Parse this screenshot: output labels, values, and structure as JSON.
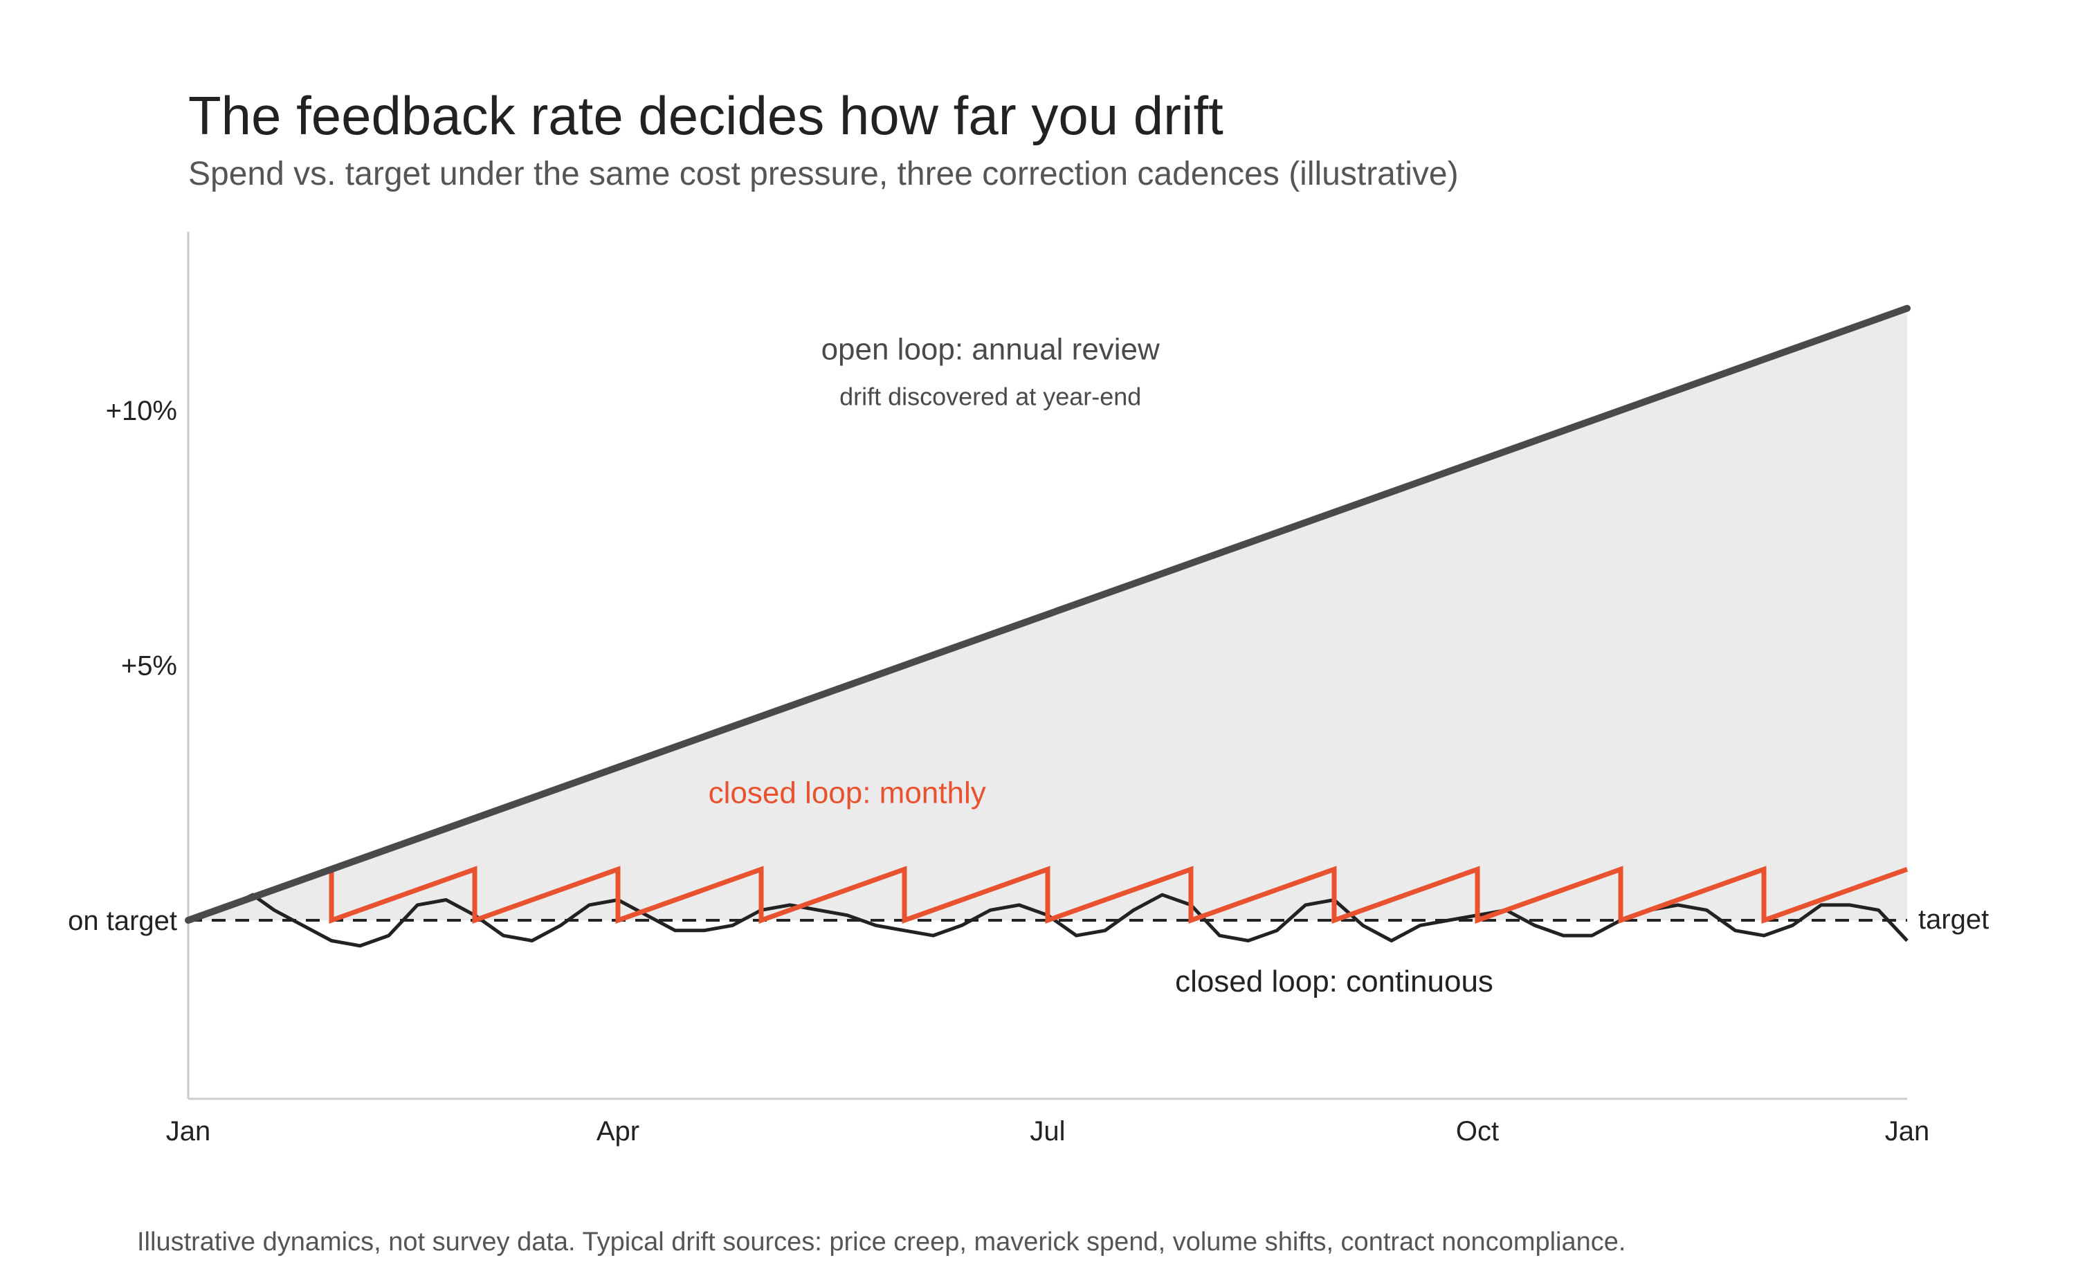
{
  "header": {
    "title": "The feedback rate decides how far you drift",
    "subtitle": "Spend vs. target under the same cost pressure, three correction cadences (illustrative)"
  },
  "footnote": "Illustrative dynamics, not survey data. Typical drift sources: price creep, maverick spend, volume shifts, contract noncompliance.",
  "colors": {
    "open_loop": "#4a4a4a",
    "monthly": "#e8522e",
    "continuous": "#222222",
    "band_fill": "#ebebeb",
    "axis": "#cccccc",
    "target_line": "#222222"
  },
  "chart_data": {
    "type": "line",
    "title": "The feedback rate decides how far you drift",
    "subtitle": "Spend vs. target under the same cost pressure, three correction cadences (illustrative)",
    "xlabel": "",
    "ylabel": "",
    "x_unit": "months since Jan",
    "xlim": [
      0,
      12
    ],
    "ylim": [
      -3.5,
      13.5
    ],
    "x_ticks": [
      {
        "value": 0,
        "label": "Jan"
      },
      {
        "value": 3,
        "label": "Apr"
      },
      {
        "value": 6,
        "label": "Jul"
      },
      {
        "value": 9,
        "label": "Oct"
      },
      {
        "value": 12,
        "label": "Jan"
      }
    ],
    "y_ticks": [
      {
        "value": 0,
        "label": "on target"
      },
      {
        "value": 5,
        "label": "+5%"
      },
      {
        "value": 10,
        "label": "+10%"
      }
    ],
    "target": {
      "value": 0,
      "label": "target",
      "style": "dashed"
    },
    "grid": false,
    "legend": "none (direct labels)",
    "series": [
      {
        "name": "open loop: annual review",
        "note": "drift discovered at year-end",
        "style": "thick dark line with shaded area to target",
        "points": [
          [
            0,
            0
          ],
          [
            12,
            12
          ]
        ]
      },
      {
        "name": "closed loop: monthly",
        "style": "sawtooth: climbs ~1% per month, reset to target at each month end",
        "points": [
          [
            0,
            0
          ],
          [
            1,
            1
          ],
          [
            1,
            0
          ],
          [
            2,
            1
          ],
          [
            2,
            0
          ],
          [
            3,
            1
          ],
          [
            3,
            0
          ],
          [
            4,
            1
          ],
          [
            4,
            0
          ],
          [
            5,
            1
          ],
          [
            5,
            0
          ],
          [
            6,
            1
          ],
          [
            6,
            0
          ],
          [
            7,
            1
          ],
          [
            7,
            0
          ],
          [
            8,
            1
          ],
          [
            8,
            0
          ],
          [
            9,
            1
          ],
          [
            9,
            0
          ],
          [
            10,
            1
          ],
          [
            10,
            0
          ],
          [
            11,
            1
          ],
          [
            11,
            0
          ],
          [
            12,
            1
          ]
        ]
      },
      {
        "name": "closed loop: continuous",
        "style": "noisy line around target",
        "points": [
          [
            0,
            0.0
          ],
          [
            0.3,
            0.3
          ],
          [
            0.45,
            0.5
          ],
          [
            0.6,
            0.2
          ],
          [
            0.8,
            -0.1
          ],
          [
            1.0,
            -0.4
          ],
          [
            1.2,
            -0.5
          ],
          [
            1.4,
            -0.3
          ],
          [
            1.6,
            0.3
          ],
          [
            1.8,
            0.4
          ],
          [
            2.0,
            0.1
          ],
          [
            2.2,
            -0.3
          ],
          [
            2.4,
            -0.4
          ],
          [
            2.6,
            -0.1
          ],
          [
            2.8,
            0.3
          ],
          [
            3.0,
            0.4
          ],
          [
            3.2,
            0.1
          ],
          [
            3.4,
            -0.2
          ],
          [
            3.6,
            -0.2
          ],
          [
            3.8,
            -0.1
          ],
          [
            4.0,
            0.2
          ],
          [
            4.2,
            0.3
          ],
          [
            4.4,
            0.2
          ],
          [
            4.6,
            0.1
          ],
          [
            4.8,
            -0.1
          ],
          [
            5.0,
            -0.2
          ],
          [
            5.2,
            -0.3
          ],
          [
            5.4,
            -0.1
          ],
          [
            5.6,
            0.2
          ],
          [
            5.8,
            0.3
          ],
          [
            6.0,
            0.1
          ],
          [
            6.2,
            -0.3
          ],
          [
            6.4,
            -0.2
          ],
          [
            6.6,
            0.2
          ],
          [
            6.8,
            0.5
          ],
          [
            7.0,
            0.3
          ],
          [
            7.2,
            -0.3
          ],
          [
            7.4,
            -0.4
          ],
          [
            7.6,
            -0.2
          ],
          [
            7.8,
            0.3
          ],
          [
            8.0,
            0.4
          ],
          [
            8.2,
            -0.1
          ],
          [
            8.4,
            -0.4
          ],
          [
            8.6,
            -0.1
          ],
          [
            8.8,
            0.0
          ],
          [
            9.0,
            0.1
          ],
          [
            9.2,
            0.2
          ],
          [
            9.4,
            -0.1
          ],
          [
            9.6,
            -0.3
          ],
          [
            9.8,
            -0.3
          ],
          [
            10.0,
            0.0
          ],
          [
            10.2,
            0.2
          ],
          [
            10.4,
            0.3
          ],
          [
            10.6,
            0.2
          ],
          [
            10.8,
            -0.2
          ],
          [
            11.0,
            -0.3
          ],
          [
            11.2,
            -0.1
          ],
          [
            11.4,
            0.3
          ],
          [
            11.6,
            0.3
          ],
          [
            11.8,
            0.2
          ],
          [
            12.0,
            -0.4
          ]
        ]
      }
    ],
    "annotations": [
      {
        "text": "open loop: annual review",
        "x": 5.6,
        "y": 11.0,
        "color": "#4a4a4a"
      },
      {
        "text": "drift discovered at year-end",
        "x": 5.6,
        "y": 10.1,
        "color": "#4a4a4a"
      },
      {
        "text": "closed loop: monthly",
        "x": 4.6,
        "y": 2.3,
        "color": "#e8522e"
      },
      {
        "text": "closed loop: continuous",
        "x": 8.0,
        "y": -1.4,
        "color": "#222222"
      }
    ]
  }
}
